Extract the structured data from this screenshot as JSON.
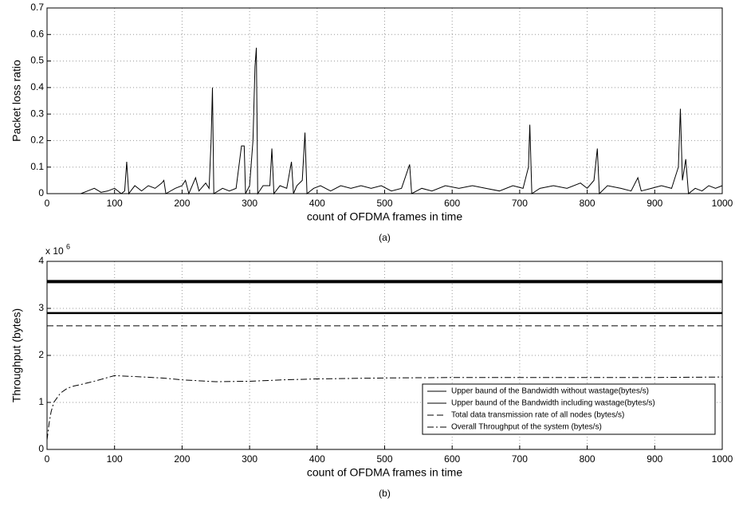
{
  "chart_data": [
    {
      "type": "line",
      "ylabel": "Packet loss ratio",
      "xlabel": "count of OFDMA frames in time",
      "caption": "(a)",
      "xlim": [
        0,
        1000
      ],
      "ylim": [
        0,
        0.7
      ],
      "xticks": [
        0,
        100,
        200,
        300,
        400,
        500,
        600,
        700,
        800,
        900,
        1000
      ],
      "yticks": [
        0,
        0.1,
        0.2,
        0.3,
        0.4,
        0.5,
        0.6,
        0.7
      ],
      "grid": true,
      "series": [
        {
          "color": "#000000",
          "x": [
            50,
            60,
            70,
            80,
            90,
            100,
            110,
            115,
            118,
            121,
            130,
            140,
            150,
            160,
            170,
            173,
            176,
            190,
            200,
            205,
            210,
            220,
            225,
            235,
            240,
            243,
            245,
            247,
            260,
            270,
            280,
            288,
            292,
            294,
            300,
            305,
            308,
            310,
            312,
            320,
            330,
            333,
            336,
            345,
            355,
            362,
            365,
            370,
            378,
            382,
            385,
            395,
            405,
            420,
            435,
            450,
            465,
            480,
            495,
            510,
            525,
            537,
            540,
            555,
            570,
            590,
            610,
            630,
            650,
            670,
            690,
            705,
            713,
            715,
            718,
            730,
            750,
            770,
            790,
            800,
            810,
            815,
            818,
            830,
            850,
            865,
            875,
            880,
            895,
            910,
            925,
            935,
            938,
            941,
            946,
            950,
            960,
            970,
            980,
            990,
            1000
          ],
          "values": [
            0,
            0.01,
            0.02,
            0.005,
            0.01,
            0.02,
            0,
            0.01,
            0.12,
            0,
            0.03,
            0.01,
            0.03,
            0.02,
            0.04,
            0.05,
            0,
            0.02,
            0.03,
            0.05,
            0,
            0.06,
            0.01,
            0.04,
            0.02,
            0.2,
            0.4,
            0,
            0.02,
            0.01,
            0.02,
            0.18,
            0.18,
            0,
            0.03,
            0.2,
            0.48,
            0.55,
            0,
            0.03,
            0.03,
            0.17,
            0,
            0.03,
            0.02,
            0.12,
            0,
            0.03,
            0.05,
            0.23,
            0,
            0.02,
            0.03,
            0.01,
            0.03,
            0.02,
            0.03,
            0.02,
            0.03,
            0.01,
            0.02,
            0.11,
            0,
            0.02,
            0.01,
            0.03,
            0.02,
            0.03,
            0.02,
            0.01,
            0.03,
            0.02,
            0.1,
            0.26,
            0,
            0.02,
            0.03,
            0.02,
            0.04,
            0.02,
            0.05,
            0.17,
            0,
            0.03,
            0.02,
            0.01,
            0.06,
            0.01,
            0.02,
            0.03,
            0.02,
            0.1,
            0.32,
            0.05,
            0.13,
            0,
            0.02,
            0.01,
            0.03,
            0.02,
            0.03
          ]
        }
      ]
    },
    {
      "type": "line",
      "ylabel": "Throughput (bytes)",
      "xlabel": "count of OFDMA frames in time",
      "caption": "(b)",
      "y_multiplier": {
        "base": "x 10",
        "exponent": "6"
      },
      "xlim": [
        0,
        1000
      ],
      "ylim": [
        0,
        4
      ],
      "xticks": [
        0,
        100,
        200,
        300,
        400,
        500,
        600,
        700,
        800,
        900,
        1000
      ],
      "yticks": [
        0,
        1,
        2,
        3,
        4
      ],
      "grid": true,
      "legend": "lower right",
      "series": [
        {
          "name": "Upper baund of the Bandwidth without wastage(bytes/s)",
          "color": "#000000",
          "dash": "solid",
          "x": [
            0,
            1000
          ],
          "values": [
            3.57,
            3.57
          ]
        },
        {
          "name": "Upper baund of the Bandwidth including wastage(bytes/s)",
          "color": "#000000",
          "dash": "solid",
          "x": [
            0,
            1000
          ],
          "values": [
            2.9,
            2.9
          ]
        },
        {
          "name": "Total data transmission rate of all nodes (bytes/s)",
          "color": "#000000",
          "dash": "dashed",
          "x": [
            0,
            1000
          ],
          "values": [
            2.63,
            2.63
          ]
        },
        {
          "name": "Overall Throughput of the system (bytes/s)",
          "color": "#000000",
          "dash": "dashdot",
          "x": [
            0,
            3,
            6,
            10,
            15,
            20,
            30,
            40,
            50,
            70,
            100,
            130,
            170,
            200,
            250,
            300,
            350,
            400,
            500,
            600,
            700,
            800,
            900,
            1000
          ],
          "values": [
            0.2,
            0.55,
            0.8,
            1.0,
            1.1,
            1.2,
            1.3,
            1.35,
            1.38,
            1.45,
            1.57,
            1.55,
            1.52,
            1.48,
            1.44,
            1.45,
            1.48,
            1.5,
            1.52,
            1.53,
            1.53,
            1.53,
            1.53,
            1.54
          ]
        }
      ]
    }
  ]
}
